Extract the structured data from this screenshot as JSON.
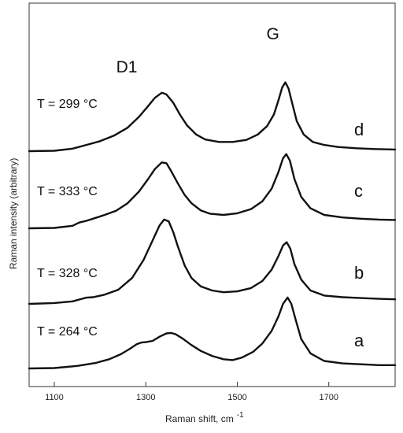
{
  "chart_data": {
    "type": "line",
    "xlabel": "Raman shift, cm",
    "xlabel_superscript": "-1",
    "ylabel": "Raman intensity (arbitrary)",
    "xlim": [
      1045,
      1845
    ],
    "x_ticks": [
      1100,
      1300,
      1500,
      1700
    ],
    "y_ticks": [],
    "grid": false,
    "legend": "none",
    "peak_annotations": [
      {
        "text": "D1",
        "x": 1335
      },
      {
        "text": "G",
        "x": 1605
      }
    ],
    "series": [
      {
        "letter": "d",
        "temperature_label": "T = 299 °C",
        "x": [
          1045,
          1100,
          1140,
          1170,
          1200,
          1230,
          1260,
          1285,
          1305,
          1320,
          1335,
          1345,
          1360,
          1375,
          1390,
          1410,
          1430,
          1460,
          1490,
          1520,
          1545,
          1565,
          1580,
          1590,
          1598,
          1605,
          1612,
          1620,
          1630,
          1645,
          1665,
          1690,
          1720,
          1760,
          1800,
          1845
        ],
        "y": [
          0.4,
          0.41,
          0.46,
          0.55,
          0.64,
          0.77,
          0.96,
          1.22,
          1.48,
          1.68,
          1.8,
          1.76,
          1.56,
          1.27,
          1.02,
          0.8,
          0.68,
          0.62,
          0.62,
          0.67,
          0.8,
          1.0,
          1.28,
          1.62,
          1.92,
          2.05,
          1.9,
          1.55,
          1.12,
          0.8,
          0.62,
          0.55,
          0.5,
          0.47,
          0.45,
          0.44
        ]
      },
      {
        "letter": "c",
        "temperature_label": "T = 333 °C",
        "x": [
          1045,
          1100,
          1140,
          1155,
          1170,
          1190,
          1210,
          1235,
          1260,
          1285,
          1305,
          1320,
          1335,
          1345,
          1355,
          1370,
          1385,
          1400,
          1420,
          1440,
          1470,
          1500,
          1530,
          1555,
          1575,
          1590,
          1600,
          1607,
          1615,
          1625,
          1640,
          1660,
          1690,
          1730,
          1770,
          1810,
          1845
        ],
        "y": [
          0.3,
          0.31,
          0.36,
          0.44,
          0.48,
          0.55,
          0.62,
          0.72,
          0.9,
          1.18,
          1.48,
          1.72,
          1.88,
          1.86,
          1.68,
          1.38,
          1.1,
          0.9,
          0.73,
          0.65,
          0.62,
          0.66,
          0.76,
          0.95,
          1.25,
          1.65,
          1.98,
          2.08,
          1.92,
          1.48,
          1.05,
          0.78,
          0.62,
          0.56,
          0.53,
          0.51,
          0.5
        ]
      },
      {
        "letter": "b",
        "temperature_label": "T = 328 °C",
        "x": [
          1045,
          1100,
          1140,
          1160,
          1170,
          1185,
          1210,
          1240,
          1270,
          1295,
          1315,
          1330,
          1340,
          1350,
          1360,
          1370,
          1385,
          1400,
          1420,
          1445,
          1470,
          1500,
          1530,
          1555,
          1575,
          1590,
          1600,
          1608,
          1616,
          1625,
          1640,
          1660,
          1690,
          1730,
          1770,
          1810,
          1845
        ],
        "y": [
          0.3,
          0.32,
          0.36,
          0.42,
          0.45,
          0.46,
          0.52,
          0.64,
          0.92,
          1.35,
          1.82,
          2.18,
          2.32,
          2.28,
          2.02,
          1.68,
          1.22,
          0.92,
          0.72,
          0.62,
          0.58,
          0.6,
          0.68,
          0.85,
          1.12,
          1.45,
          1.7,
          1.78,
          1.62,
          1.25,
          0.88,
          0.62,
          0.5,
          0.46,
          0.44,
          0.42,
          0.41
        ]
      },
      {
        "letter": "a",
        "temperature_label": "T = 264 °C",
        "x": [
          1045,
          1100,
          1150,
          1190,
          1220,
          1245,
          1265,
          1280,
          1290,
          1300,
          1315,
          1330,
          1345,
          1355,
          1365,
          1380,
          1400,
          1420,
          1445,
          1470,
          1490,
          1510,
          1535,
          1555,
          1575,
          1590,
          1600,
          1610,
          1618,
          1628,
          1640,
          1660,
          1690,
          1730,
          1770,
          1810,
          1845
        ],
        "y": [
          0.3,
          0.31,
          0.36,
          0.43,
          0.52,
          0.64,
          0.77,
          0.88,
          0.92,
          0.93,
          0.96,
          1.06,
          1.14,
          1.15,
          1.12,
          1.02,
          0.86,
          0.72,
          0.6,
          0.52,
          0.5,
          0.56,
          0.7,
          0.9,
          1.2,
          1.55,
          1.85,
          2.0,
          1.85,
          1.45,
          1.0,
          0.66,
          0.48,
          0.42,
          0.4,
          0.38,
          0.38
        ]
      }
    ]
  }
}
